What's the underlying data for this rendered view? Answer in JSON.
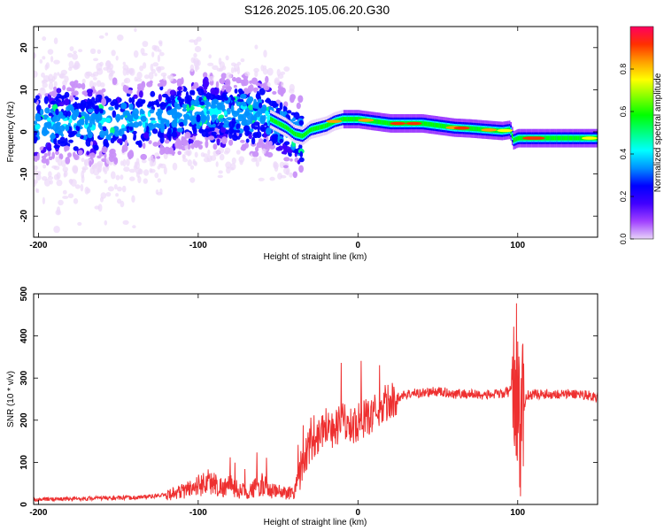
{
  "title": "S126.2025.105.06.20.G30",
  "chart_data": [
    {
      "type": "heatmap",
      "xlabel": "Height of straight line (km)",
      "ylabel": "Frequency (Hz)",
      "xlim": [
        -203,
        150
      ],
      "ylim": [
        -25,
        25
      ],
      "xticks": [
        -200,
        -100,
        0,
        100
      ],
      "yticks": [
        20,
        10,
        0,
        -10,
        -20
      ],
      "grid": false,
      "colorbar": {
        "label": "Normalized spectral amplitude",
        "range": [
          0,
          1
        ],
        "ticks": [
          "0.0",
          "0.2",
          "0.4",
          "0.6",
          "0.8"
        ],
        "colors": [
          "#e8d4f8",
          "#a040ff",
          "#4000ff",
          "#0000ff",
          "#0090ff",
          "#00ffff",
          "#00ff80",
          "#00ff00",
          "#80ff00",
          "#ffff00",
          "#ffa000",
          "#ff3000",
          "#ff0060"
        ]
      },
      "ridge": {
        "x": [
          -203,
          -180,
          -160,
          -140,
          -120,
          -100,
          -80,
          -60,
          -50,
          -45,
          -40,
          -35,
          -30,
          -25,
          -20,
          -15,
          -10,
          0,
          10,
          20,
          30,
          40,
          50,
          60,
          70,
          80,
          90,
          95,
          97,
          100,
          105,
          110,
          120,
          130,
          140,
          150
        ],
        "y": [
          1.5,
          2.5,
          2,
          3,
          3.5,
          5,
          4.5,
          4,
          2,
          1,
          -0.5,
          -1,
          0.5,
          1,
          1.5,
          2.5,
          3,
          3,
          2.5,
          2,
          2,
          2,
          1.5,
          1,
          0.8,
          0.5,
          0.2,
          0.5,
          -2,
          -1.5,
          -1.5,
          -1.5,
          -1.5,
          -1.5,
          -1.5,
          -1.5
        ]
      }
    },
    {
      "type": "line",
      "xlabel": "Height of straight line (km)",
      "ylabel": "SNR (10 * v/v)",
      "xlim": [
        -203,
        150
      ],
      "ylim": [
        0,
        500
      ],
      "xticks": [
        -200,
        -100,
        0,
        100
      ],
      "yticks": [
        0,
        100,
        200,
        300,
        400,
        500
      ],
      "grid": false,
      "series": [
        {
          "color": "#ee3030",
          "x": [
            -200,
            -180,
            -160,
            -140,
            -120,
            -110,
            -100,
            -95,
            -90,
            -85,
            -80,
            -75,
            -70,
            -65,
            -60,
            -55,
            -50,
            -45,
            -40,
            -35,
            -30,
            -25,
            -20,
            -15,
            -10,
            -5,
            0,
            10,
            20,
            30,
            40,
            50,
            60,
            70,
            80,
            90,
            95,
            98,
            100,
            102,
            105,
            110,
            120,
            130,
            140,
            150
          ],
          "y": [
            12,
            13,
            15,
            16,
            22,
            32,
            45,
            55,
            50,
            40,
            45,
            35,
            30,
            38,
            48,
            32,
            30,
            28,
            30,
            95,
            140,
            165,
            190,
            175,
            200,
            185,
            195,
            215,
            245,
            262,
            265,
            268,
            263,
            262,
            260,
            262,
            268,
            300,
            280,
            160,
            258,
            262,
            262,
            262,
            262,
            255
          ]
        }
      ]
    }
  ]
}
